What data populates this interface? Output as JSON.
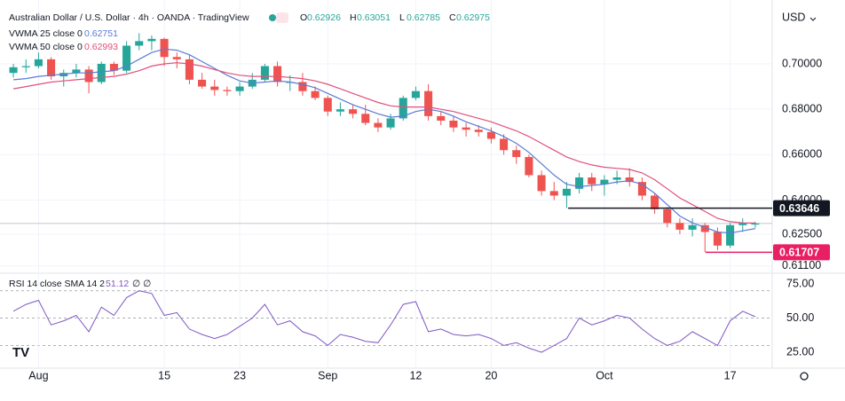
{
  "chart_data": [
    {
      "type": "candlestick",
      "title": "Australian Dollar / U.S. Dollar · 4h · OANDA · TradingView",
      "quote": [
        {
          "label": "O",
          "value": 0.62926
        },
        {
          "label": "H",
          "value": 0.63051
        },
        {
          "label": "L",
          "value": 0.62785
        },
        {
          "label": "C",
          "value": 0.62975
        }
      ],
      "currency": "USD",
      "categories": [
        null,
        null,
        "Aug",
        null,
        null,
        null,
        null,
        null,
        null,
        null,
        null,
        null,
        "15",
        null,
        null,
        null,
        null,
        null,
        "23",
        null,
        null,
        null,
        null,
        null,
        null,
        "Sep",
        null,
        null,
        null,
        null,
        null,
        null,
        "12",
        null,
        null,
        null,
        null,
        null,
        "20",
        null,
        null,
        null,
        null,
        null,
        null,
        null,
        null,
        "Oct",
        null,
        null,
        null,
        null,
        null,
        null,
        null,
        null,
        null,
        "17",
        null,
        null
      ],
      "open": [
        0.696,
        0.6985,
        0.699,
        0.702,
        0.6945,
        0.696,
        0.6975,
        0.692,
        0.7,
        0.697,
        0.708,
        0.71,
        0.711,
        0.703,
        0.702,
        0.693,
        0.69,
        0.6885,
        0.688,
        0.69,
        0.693,
        0.699,
        0.692,
        0.692,
        0.688,
        0.685,
        0.679,
        0.68,
        0.678,
        0.674,
        0.672,
        0.676,
        0.685,
        0.688,
        0.677,
        0.675,
        0.672,
        0.671,
        0.67,
        0.667,
        0.662,
        0.659,
        0.651,
        0.644,
        0.642,
        0.645,
        0.65,
        0.647,
        0.649,
        0.65,
        0.648,
        0.642,
        0.636,
        0.63,
        0.627,
        0.629,
        0.626,
        0.62,
        0.629,
        0.62926
      ],
      "high": [
        0.7,
        0.702,
        0.705,
        0.703,
        0.6975,
        0.7,
        0.699,
        0.701,
        0.701,
        0.71,
        0.7135,
        0.7125,
        0.7115,
        0.705,
        0.704,
        0.696,
        0.693,
        0.69,
        0.692,
        0.696,
        0.7,
        0.701,
        0.695,
        0.696,
        0.69,
        0.686,
        0.683,
        0.682,
        0.682,
        0.676,
        0.678,
        0.686,
        0.69,
        0.691,
        0.679,
        0.677,
        0.674,
        0.673,
        0.672,
        0.669,
        0.664,
        0.66,
        0.653,
        0.648,
        0.648,
        0.652,
        0.652,
        0.651,
        0.653,
        0.654,
        0.65,
        0.643,
        0.637,
        0.632,
        0.632,
        0.63,
        0.628,
        0.63,
        0.632,
        0.63051
      ],
      "low": [
        0.694,
        0.696,
        0.698,
        0.693,
        0.69,
        0.694,
        0.687,
        0.691,
        0.695,
        0.696,
        0.706,
        0.706,
        0.699,
        0.698,
        0.691,
        0.689,
        0.686,
        0.686,
        0.686,
        0.689,
        0.692,
        0.69,
        0.688,
        0.686,
        0.684,
        0.677,
        0.677,
        0.676,
        0.673,
        0.67,
        0.671,
        0.675,
        0.684,
        0.675,
        0.673,
        0.67,
        0.668,
        0.668,
        0.665,
        0.66,
        0.656,
        0.65,
        0.642,
        0.64,
        0.6365,
        0.643,
        0.644,
        0.642,
        0.647,
        0.646,
        0.64,
        0.634,
        0.628,
        0.625,
        0.624,
        0.6171,
        0.618,
        0.619,
        0.626,
        0.62785
      ],
      "close": [
        0.6985,
        0.699,
        0.702,
        0.6945,
        0.696,
        0.6975,
        0.692,
        0.7,
        0.697,
        0.708,
        0.71,
        0.711,
        0.703,
        0.702,
        0.693,
        0.69,
        0.6885,
        0.688,
        0.69,
        0.693,
        0.699,
        0.692,
        0.692,
        0.688,
        0.685,
        0.679,
        0.68,
        0.678,
        0.674,
        0.672,
        0.676,
        0.685,
        0.688,
        0.677,
        0.675,
        0.672,
        0.671,
        0.67,
        0.667,
        0.662,
        0.659,
        0.651,
        0.644,
        0.642,
        0.645,
        0.65,
        0.647,
        0.649,
        0.65,
        0.648,
        0.642,
        0.636,
        0.63,
        0.627,
        0.629,
        0.626,
        0.62,
        0.629,
        0.63,
        0.62975
      ],
      "up_color": "#26a69a",
      "down_color": "#ef5350",
      "series": [
        {
          "name": "VWMA 25 close 0",
          "value": 0.62751,
          "color": "#5b7bd5",
          "values": [
            0.693,
            0.6935,
            0.6945,
            0.695,
            0.6955,
            0.696,
            0.696,
            0.6965,
            0.697,
            0.699,
            0.702,
            0.705,
            0.7065,
            0.706,
            0.704,
            0.701,
            0.698,
            0.695,
            0.6925,
            0.6915,
            0.692,
            0.6925,
            0.692,
            0.691,
            0.6895,
            0.687,
            0.6845,
            0.682,
            0.68,
            0.678,
            0.6765,
            0.677,
            0.679,
            0.68,
            0.679,
            0.677,
            0.6745,
            0.6725,
            0.6705,
            0.668,
            0.665,
            0.661,
            0.656,
            0.651,
            0.647,
            0.646,
            0.6465,
            0.647,
            0.648,
            0.6485,
            0.647,
            0.643,
            0.638,
            0.633,
            0.63,
            0.628,
            0.626,
            0.6255,
            0.6265,
            0.6275
          ]
        },
        {
          "name": "VWMA 50 close 0",
          "value": 0.62993,
          "color": "#e0507a",
          "values": [
            0.689,
            0.69,
            0.691,
            0.692,
            0.6925,
            0.693,
            0.6935,
            0.694,
            0.6945,
            0.6955,
            0.697,
            0.699,
            0.7,
            0.7005,
            0.7,
            0.699,
            0.6975,
            0.696,
            0.695,
            0.6945,
            0.6945,
            0.6945,
            0.694,
            0.6935,
            0.6925,
            0.691,
            0.689,
            0.687,
            0.685,
            0.683,
            0.6815,
            0.681,
            0.681,
            0.681,
            0.68,
            0.679,
            0.6775,
            0.676,
            0.6745,
            0.6725,
            0.6705,
            0.668,
            0.665,
            0.662,
            0.659,
            0.657,
            0.6555,
            0.6545,
            0.654,
            0.6535,
            0.652,
            0.649,
            0.645,
            0.641,
            0.638,
            0.635,
            0.632,
            0.6305,
            0.63,
            0.6299
          ]
        }
      ],
      "levels": [
        {
          "value": 0.63646,
          "color": "#131722"
        },
        {
          "value": 0.61707,
          "color": "#e91e63"
        }
      ],
      "ylim": [
        0.609,
        0.7242
      ],
      "yticks": [
        {
          "value": 0.611,
          "label": "0.61100"
        },
        {
          "value": 0.625,
          "label": "0.62500"
        },
        {
          "value": 0.64,
          "label": "0.64000"
        },
        {
          "value": 0.66,
          "label": "0.66000"
        },
        {
          "value": 0.68,
          "label": "0.68000"
        },
        {
          "value": 0.7,
          "label": "0.70000"
        }
      ]
    },
    {
      "type": "line",
      "title": "RSI 14 close SMA 14 2",
      "value": 51.12,
      "flags": "∅ ∅",
      "color": "#7e57c2",
      "values": [
        55,
        60,
        63,
        45,
        48,
        52,
        40,
        58,
        52,
        65,
        70,
        68,
        52,
        54,
        42,
        38,
        35,
        38,
        44,
        50,
        60,
        45,
        48,
        40,
        37,
        30,
        38,
        36,
        33,
        32,
        45,
        60,
        62,
        40,
        42,
        38,
        37,
        38,
        35,
        30,
        32,
        28,
        25,
        30,
        35,
        50,
        45,
        48,
        52,
        50,
        42,
        35,
        30,
        33,
        40,
        35,
        30,
        48,
        55,
        51
      ],
      "bands": [
        30,
        50,
        70
      ],
      "ylim": [
        15.3,
        81.5
      ],
      "yticks": [
        {
          "value": 25,
          "label": "25.00"
        },
        {
          "value": 50,
          "label": "50.00"
        },
        {
          "value": 75,
          "label": "75.00"
        }
      ]
    }
  ]
}
